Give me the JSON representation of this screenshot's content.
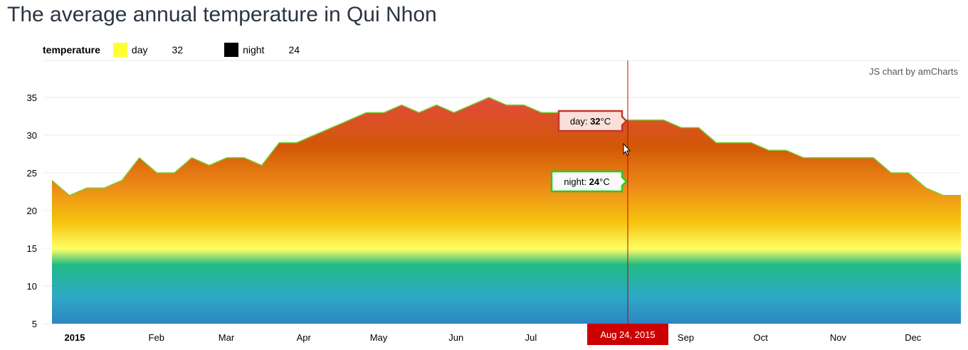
{
  "page": {
    "title": "The average annual temperature in Qui Nhon",
    "credit": "JS chart by amCharts"
  },
  "legend": {
    "title": "temperature",
    "items": [
      {
        "label": "day",
        "value": "32",
        "color": "#ffff33"
      },
      {
        "label": "night",
        "value": "24",
        "color": "#000000"
      }
    ]
  },
  "cursor": {
    "date_label": "Aug 24, 2015",
    "date": "2015-08-24",
    "line_color": "#cc0000",
    "label_bg": "#cc0000"
  },
  "balloons": {
    "day": {
      "label": "day: ",
      "value": "32",
      "unit": "°C",
      "border": "#c0392b",
      "bg": "#fbe0da"
    },
    "night": {
      "label": "night: ",
      "value": "24",
      "unit": "°C",
      "border": "#22cc22",
      "bg": "#fafafa"
    }
  },
  "colors": {
    "line": "#7dcc33",
    "grid": "#eeeeee",
    "gradient": [
      "#2e85c1",
      "#2ea9c7",
      "#1fba84",
      "#ffff66",
      "#f5c30d",
      "#ee8c18",
      "#d25806",
      "#e04b3a"
    ]
  },
  "chart_data": {
    "type": "area",
    "title": "The average annual temperature in Qui Nhon",
    "xlabel": "",
    "ylabel": "",
    "ylim": [
      5,
      37
    ],
    "yticks": [
      5,
      10,
      15,
      20,
      25,
      30,
      35
    ],
    "grid": true,
    "legend_position": "top-left",
    "x_tick_labels": [
      {
        "date": "2015-01-01",
        "label": "2015",
        "bold": true
      },
      {
        "date": "2015-02-01",
        "label": "Feb"
      },
      {
        "date": "2015-03-01",
        "label": "Mar"
      },
      {
        "date": "2015-04-01",
        "label": "Apr"
      },
      {
        "date": "2015-05-01",
        "label": "May"
      },
      {
        "date": "2015-06-01",
        "label": "Jun"
      },
      {
        "date": "2015-07-01",
        "label": "Jul"
      },
      {
        "date": "2015-09-01",
        "label": "Sep"
      },
      {
        "date": "2015-10-01",
        "label": "Oct"
      },
      {
        "date": "2015-11-01",
        "label": "Nov"
      },
      {
        "date": "2015-12-01",
        "label": "Dec"
      }
    ],
    "series": [
      {
        "name": "day",
        "x": [
          "2015-01-01",
          "2015-01-08",
          "2015-01-15",
          "2015-01-22",
          "2015-01-29",
          "2015-02-05",
          "2015-02-12",
          "2015-02-19",
          "2015-02-26",
          "2015-03-05",
          "2015-03-12",
          "2015-03-19",
          "2015-03-26",
          "2015-04-02",
          "2015-04-09",
          "2015-04-16",
          "2015-04-23",
          "2015-04-30",
          "2015-05-07",
          "2015-05-14",
          "2015-05-21",
          "2015-05-28",
          "2015-06-04",
          "2015-06-11",
          "2015-06-18",
          "2015-06-25",
          "2015-07-02",
          "2015-07-09",
          "2015-07-16",
          "2015-07-23",
          "2015-07-30",
          "2015-08-06",
          "2015-08-13",
          "2015-08-20",
          "2015-08-27",
          "2015-09-03",
          "2015-09-10",
          "2015-09-17",
          "2015-09-24",
          "2015-10-01",
          "2015-10-08",
          "2015-10-15",
          "2015-10-22",
          "2015-10-29",
          "2015-11-05",
          "2015-11-12",
          "2015-11-19",
          "2015-11-26",
          "2015-12-03",
          "2015-12-10",
          "2015-12-17",
          "2015-12-24",
          "2015-12-31"
        ],
        "values": [
          24,
          22,
          23,
          23,
          24,
          27,
          25,
          25,
          27,
          26,
          27,
          27,
          26,
          29,
          29,
          30,
          31,
          32,
          33,
          33,
          34,
          33,
          34,
          33,
          34,
          35,
          34,
          34,
          33,
          33,
          33,
          32,
          32,
          32,
          32,
          32,
          31,
          31,
          29,
          29,
          29,
          28,
          28,
          27,
          27,
          27,
          27,
          27,
          25,
          25,
          23,
          22,
          22
        ]
      }
    ]
  }
}
